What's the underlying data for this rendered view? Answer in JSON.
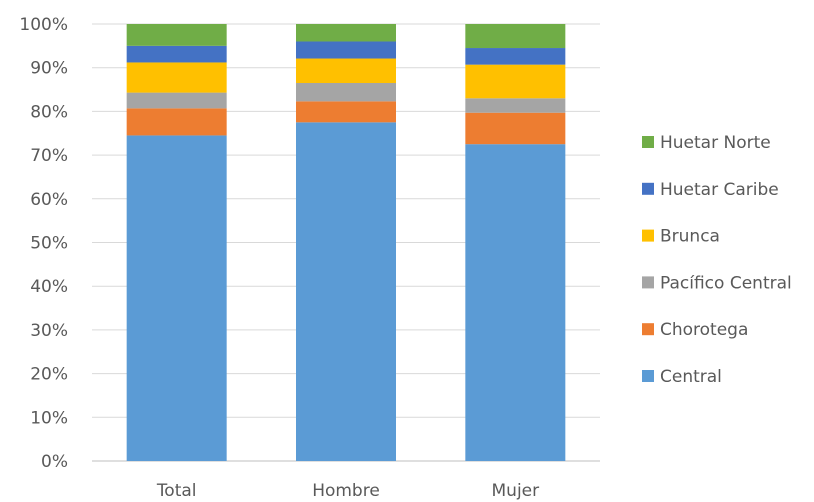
{
  "chart_data": {
    "type": "bar",
    "stacked": true,
    "percent": true,
    "categories": [
      "Total",
      "Hombre",
      "Mujer"
    ],
    "series": [
      {
        "name": "Central",
        "color": "#5B9BD5",
        "values": [
          74.5,
          77.5,
          72.5
        ]
      },
      {
        "name": "Chorotega",
        "color": "#ED7D31",
        "values": [
          6.2,
          4.8,
          7.2
        ]
      },
      {
        "name": "Pacífico Central",
        "color": "#A5A5A5",
        "values": [
          3.6,
          4.2,
          3.3
        ]
      },
      {
        "name": "Brunca",
        "color": "#FFC000",
        "values": [
          6.9,
          5.6,
          7.7
        ]
      },
      {
        "name": "Huetar Caribe",
        "color": "#4472C4",
        "values": [
          3.8,
          3.9,
          3.8
        ]
      },
      {
        "name": "Huetar Norte",
        "color": "#70AD47",
        "values": [
          5.0,
          4.0,
          5.5
        ]
      }
    ],
    "yticks": [
      "0%",
      "10%",
      "20%",
      "30%",
      "40%",
      "50%",
      "60%",
      "70%",
      "80%",
      "90%",
      "100%"
    ],
    "ylim": [
      0,
      100
    ],
    "grid": true,
    "legend_position": "right",
    "legend_order": [
      "Huetar Norte",
      "Huetar Caribe",
      "Brunca",
      "Pacífico Central",
      "Chorotega",
      "Central"
    ],
    "title": "",
    "xlabel": "",
    "ylabel": ""
  }
}
